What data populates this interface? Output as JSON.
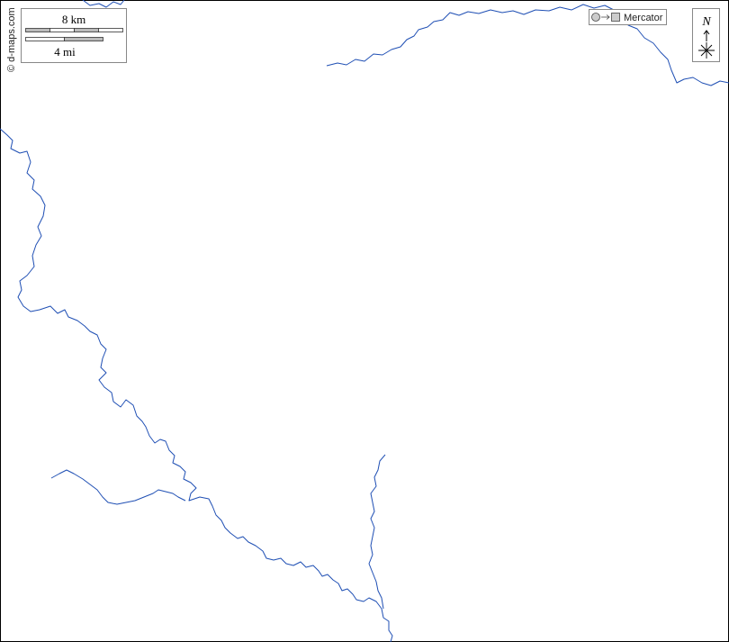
{
  "credit": "© d-maps.com",
  "scale": {
    "metric": "8 km",
    "imperial": "4 mi"
  },
  "projection": "Mercator",
  "north": "N"
}
